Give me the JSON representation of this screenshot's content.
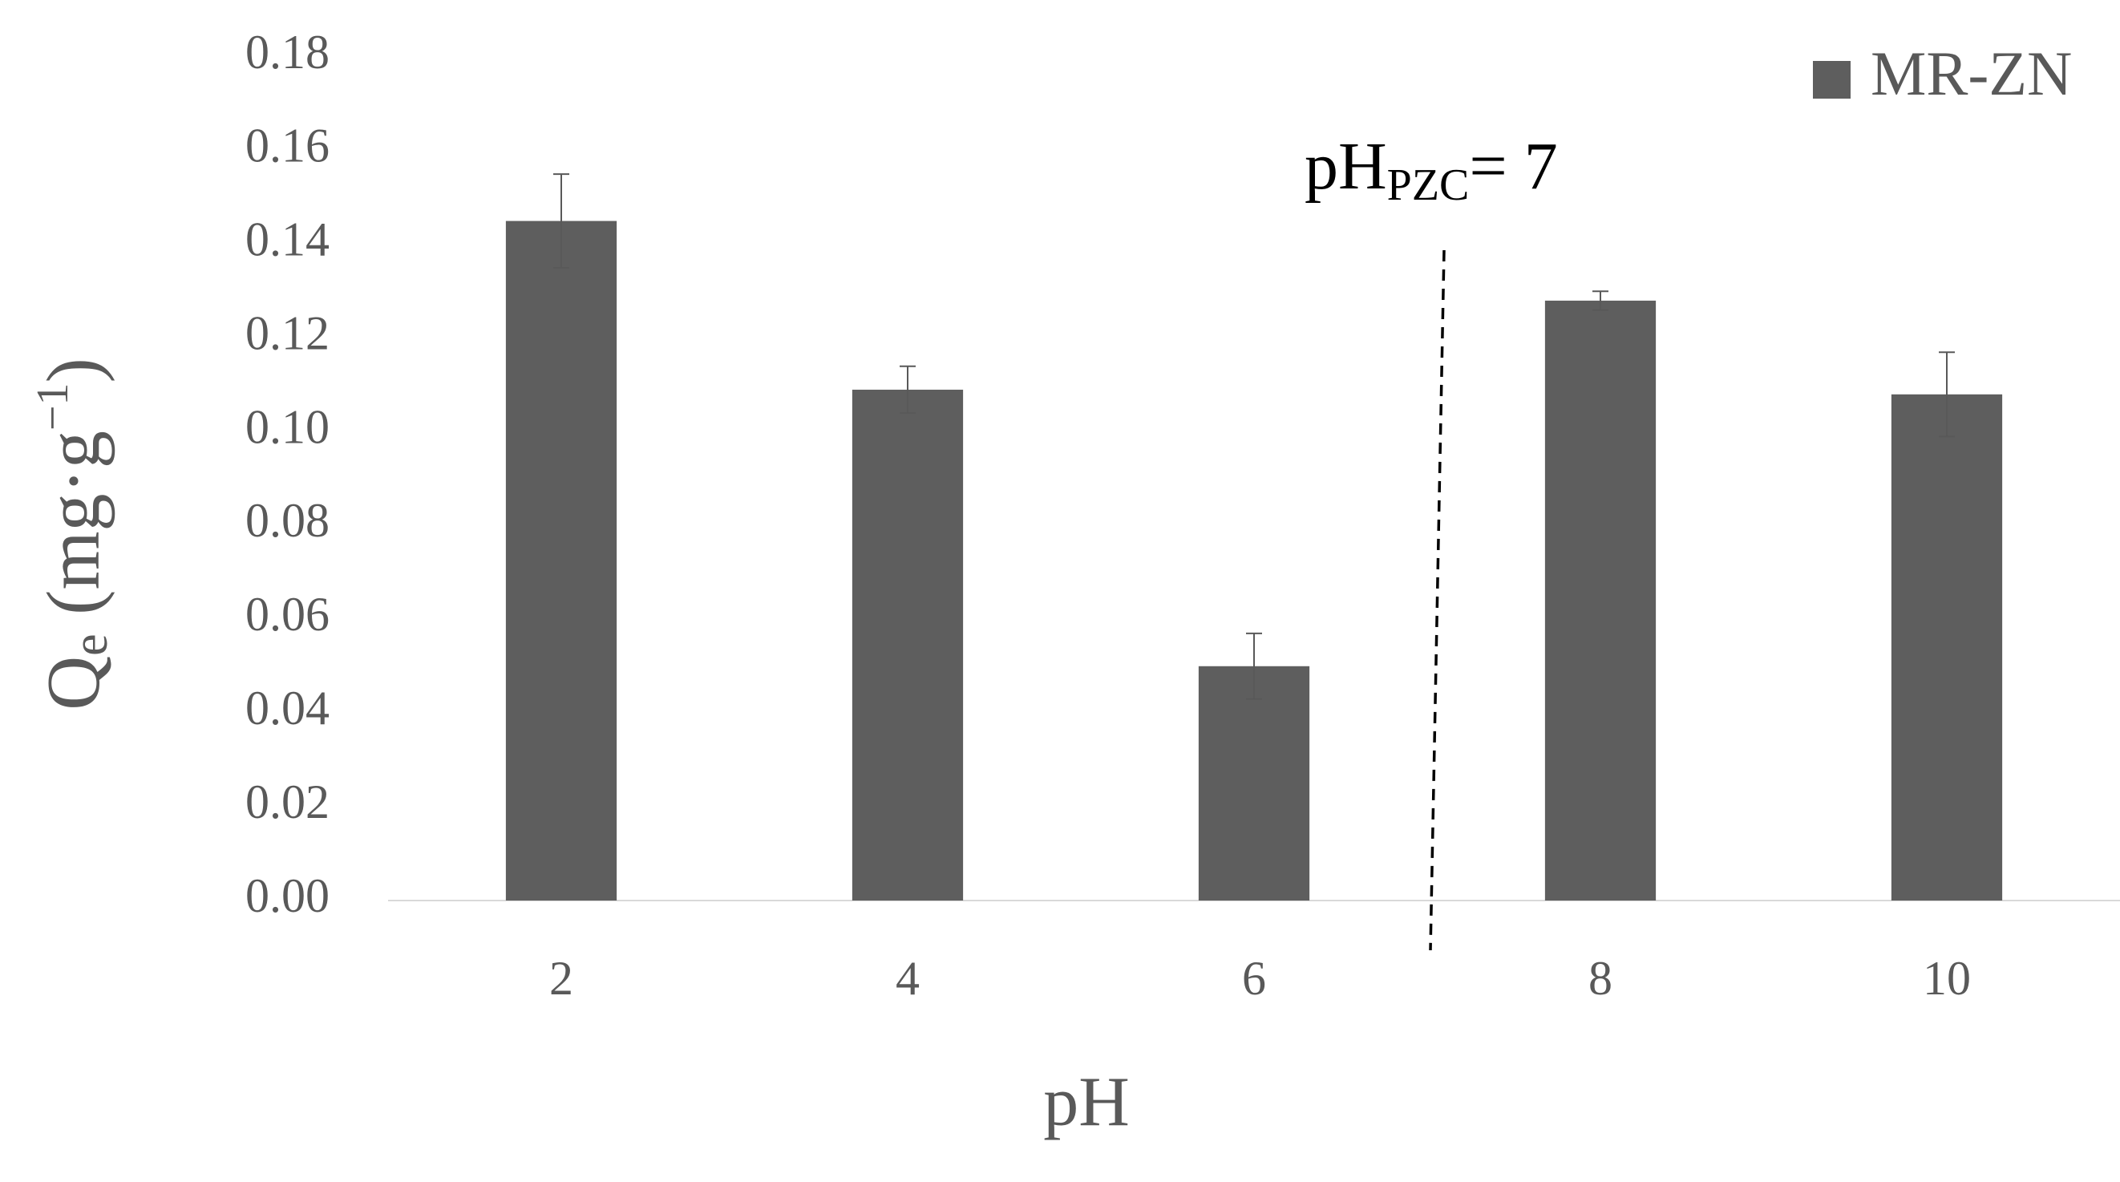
{
  "chart_data": {
    "type": "bar",
    "x_label": "pH",
    "y_label": {
      "main": "Q",
      "sub": "e",
      "unit": " (mg·g",
      "sup": "−1",
      "end": ")"
    },
    "annotation": {
      "main": "pH",
      "sub": "PZC",
      "rest": "= 7"
    },
    "categories": [
      "2",
      "4",
      "6",
      "8",
      "10"
    ],
    "series": [
      {
        "name": "MR-ZN",
        "color": "#5e5e5e",
        "values": [
          0.145,
          0.109,
          0.05,
          0.128,
          0.108
        ],
        "errors": [
          0.01,
          0.005,
          0.007,
          0.002,
          0.009
        ]
      }
    ],
    "ylim": [
      0,
      0.18
    ],
    "yticks": [
      {
        "value": 0,
        "label": "0.00"
      },
      {
        "value": 0.02,
        "label": "0.02"
      },
      {
        "value": 0.04,
        "label": "0.04"
      },
      {
        "value": 0.06,
        "label": "0.06"
      },
      {
        "value": 0.08,
        "label": "0.08"
      },
      {
        "value": 0.1,
        "label": "0.10"
      },
      {
        "value": 0.12,
        "label": "0.12"
      },
      {
        "value": 0.14,
        "label": "0.14"
      },
      {
        "value": 0.16,
        "label": "0.16"
      },
      {
        "value": 0.18,
        "label": "0.18"
      }
    ],
    "grid": false,
    "legend": "top-right"
  }
}
